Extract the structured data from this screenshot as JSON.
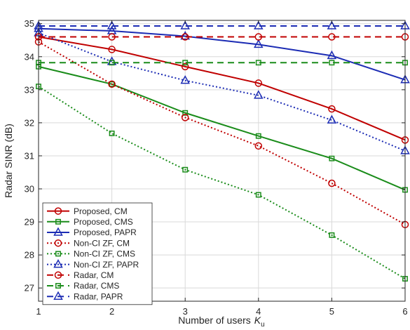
{
  "chart_data": {
    "type": "line",
    "xlabel": "Number of users",
    "xlabel_symbol": "K",
    "xlabel_subscript": "u",
    "ylabel": "Radar SINR (dB)",
    "xlim": [
      1,
      6
    ],
    "ylim": [
      26.6,
      35.1
    ],
    "xticks": [
      "1",
      "2",
      "3",
      "4",
      "5",
      "6"
    ],
    "yticks": [
      "27",
      "28",
      "29",
      "30",
      "31",
      "32",
      "33",
      "34",
      "35"
    ],
    "grid": true,
    "legend_position": "bottom-left",
    "x": [
      1,
      2,
      3,
      4,
      5,
      6
    ],
    "series": [
      {
        "name": "Proposed, CM",
        "values": [
          34.6,
          34.22,
          33.7,
          33.2,
          32.42,
          31.48
        ],
        "color": "#c00000",
        "dash": "solid",
        "marker": "circle"
      },
      {
        "name": "Proposed, CMS",
        "values": [
          33.7,
          33.17,
          32.3,
          31.6,
          30.92,
          29.97
        ],
        "color": "#1a8c1a",
        "dash": "solid",
        "marker": "square"
      },
      {
        "name": "Proposed, PAPR",
        "values": [
          34.85,
          34.78,
          34.62,
          34.37,
          34.03,
          33.3
        ],
        "color": "#1c2cb4",
        "dash": "solid",
        "marker": "triangle"
      },
      {
        "name": "Non-CI ZF, CM",
        "values": [
          34.45,
          33.17,
          32.16,
          31.3,
          30.17,
          28.92
        ],
        "color": "#c00000",
        "dash": "dotted",
        "marker": "circle"
      },
      {
        "name": "Non-CI ZF, CMS",
        "values": [
          33.1,
          31.68,
          30.58,
          29.82,
          28.6,
          27.28
        ],
        "color": "#1a8c1a",
        "dash": "dotted",
        "marker": "square"
      },
      {
        "name": "Non-CI ZF, PAPR",
        "values": [
          34.72,
          33.85,
          33.28,
          32.83,
          32.08,
          31.15
        ],
        "color": "#1c2cb4",
        "dash": "dotted",
        "marker": "triangle"
      },
      {
        "name": "Radar, CM",
        "values": [
          34.6,
          34.6,
          34.6,
          34.6,
          34.6,
          34.6
        ],
        "color": "#c00000",
        "dash": "dashed",
        "marker": "circle"
      },
      {
        "name": "Radar, CMS",
        "values": [
          33.82,
          33.82,
          33.82,
          33.82,
          33.82,
          33.82
        ],
        "color": "#1a8c1a",
        "dash": "dashed",
        "marker": "square"
      },
      {
        "name": "Radar, PAPR",
        "values": [
          34.93,
          34.93,
          34.93,
          34.93,
          34.93,
          34.93
        ],
        "color": "#1c2cb4",
        "dash": "dashed",
        "marker": "triangle"
      }
    ]
  }
}
